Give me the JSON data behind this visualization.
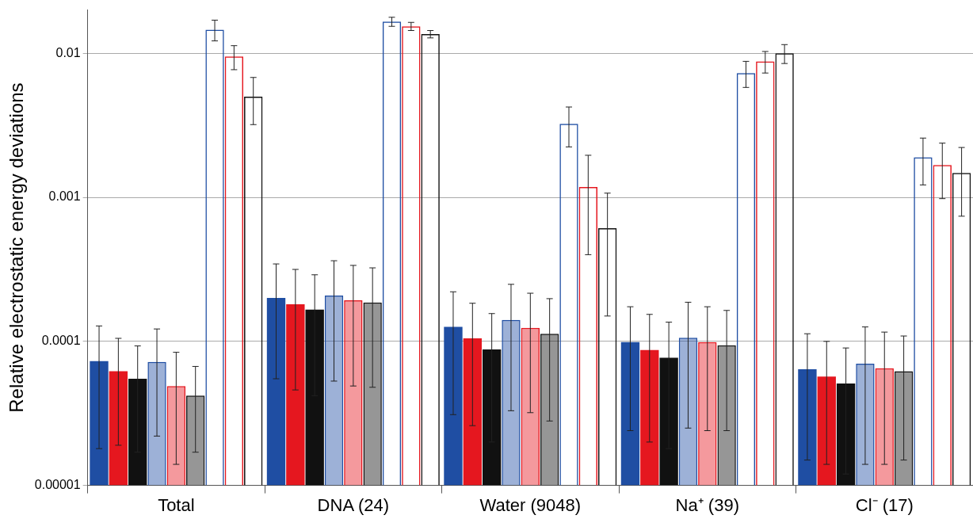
{
  "chart_data": {
    "type": "bar",
    "ylabel": "Relative electrostatic energy deviations",
    "categories": [
      "Total",
      "DNA (24)",
      "Water (9048)",
      "Na⁺ (39)",
      "Cl⁻ (17)"
    ],
    "log": "y",
    "ylim": [
      1e-05,
      0.02
    ],
    "yticks": [
      {
        "value": 1e-05,
        "label": "0.00001"
      },
      {
        "value": 0.0001,
        "label": "0.0001"
      },
      {
        "value": 0.001,
        "label": "0.001"
      },
      {
        "value": 0.01,
        "label": "0.01"
      }
    ],
    "grid": "y",
    "legend": false,
    "series": [
      {
        "color": "#1f4ea3",
        "values": [
          7.3e-05,
          0.0002,
          0.000126,
          9.9e-05,
          6.4e-05
        ],
        "errors": [
          5.5e-05,
          0.000145,
          9.5e-05,
          7.5e-05,
          4.9e-05
        ]
      },
      {
        "color": "#e5171f",
        "values": [
          6.2e-05,
          0.000181,
          0.000105,
          8.7e-05,
          5.7e-05
        ],
        "errors": [
          4.3e-05,
          0.000135,
          7.9e-05,
          6.7e-05,
          4.3e-05
        ]
      },
      {
        "color": "#111111",
        "values": [
          5.5e-05,
          0.000166,
          8.8e-05,
          7.7e-05,
          5.1e-05
        ],
        "errors": [
          3.8e-05,
          0.000124,
          6.8e-05,
          5.9e-05,
          3.9e-05
        ]
      },
      {
        "color": "#1f4ea3",
        "values": [
          7.2e-05,
          0.000208,
          0.000141,
          0.000106,
          7e-05
        ],
        "errors": [
          5e-05,
          0.000155,
          0.000108,
          8.1e-05,
          5.6e-05
        ]
      },
      {
        "color": "#e5171f",
        "values": [
          4.9e-05,
          0.000193,
          0.000124,
          9.9e-05,
          6.5e-05
        ],
        "errors": [
          3.5e-05,
          0.000144,
          9.2e-05,
          7.5e-05,
          5.1e-05
        ]
      },
      {
        "color": "#111111",
        "values": [
          4.2e-05,
          0.000186,
          0.000113,
          9.4e-05,
          6.2e-05
        ],
        "errors": [
          2.5e-05,
          0.000138,
          8.5e-05,
          7e-05,
          4.7e-05
        ]
      },
      {
        "color": "#1f4ea3",
        "values": [
          0.0146,
          0.0166,
          0.00324,
          0.0073,
          0.0019
        ],
        "errors": [
          0.0024,
          0.0012,
          0.001,
          0.0015,
          0.00068
        ]
      },
      {
        "color": "#e5171f",
        "values": [
          0.0095,
          0.0154,
          0.00118,
          0.0088,
          0.00168
        ],
        "errors": [
          0.0018,
          0.001,
          0.00078,
          0.0015,
          0.0007
        ]
      },
      {
        "color": "#111111",
        "values": [
          0.005,
          0.0136,
          0.00061,
          0.01,
          0.00148
        ],
        "errors": [
          0.0018,
          0.0008,
          0.00046,
          0.0015,
          0.00074
        ]
      }
    ]
  }
}
